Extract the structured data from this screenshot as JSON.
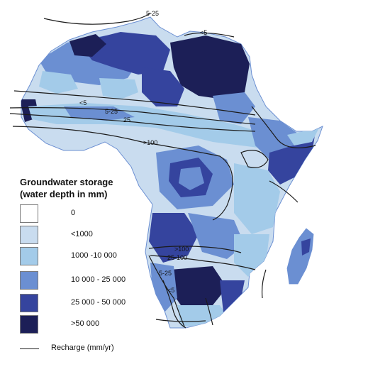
{
  "colors": {
    "ocean": "#ffffff",
    "c0": "#ffffff",
    "c1": "#c9dcef",
    "c2": "#a3cbe9",
    "c3": "#6b8fd2",
    "c4": "#35449e",
    "c5": "#1c1f57",
    "contour": "#1b1b1b"
  },
  "legend": {
    "title_line1": "Groundwater storage",
    "title_line2": "(water depth in mm)",
    "items": [
      {
        "label": "0",
        "color": "#ffffff"
      },
      {
        "label": "<1000",
        "color": "#c9dcef"
      },
      {
        "label": "1000 -10 000",
        "color": "#a3cbe9"
      },
      {
        "label": "10 000 - 25 000",
        "color": "#6b8fd2"
      },
      {
        "label": "25 000 - 50 000",
        "color": "#35449e"
      },
      {
        "label": ">50 000",
        "color": "#1c1f57"
      }
    ],
    "recharge_label": "Recharge (mm/yr)"
  },
  "contour_labels": {
    "nw_5_25": "5-25",
    "ne_lt5": "<5",
    "sahel_lt5": "<5",
    "sahel_5_25": "5-25",
    "sahel_25": "25",
    "equator_gt100": ">100",
    "south_gt100": ">100",
    "south_25_100": "25-100",
    "sw_5_25": "5-25",
    "sw_lt5": "<5"
  }
}
